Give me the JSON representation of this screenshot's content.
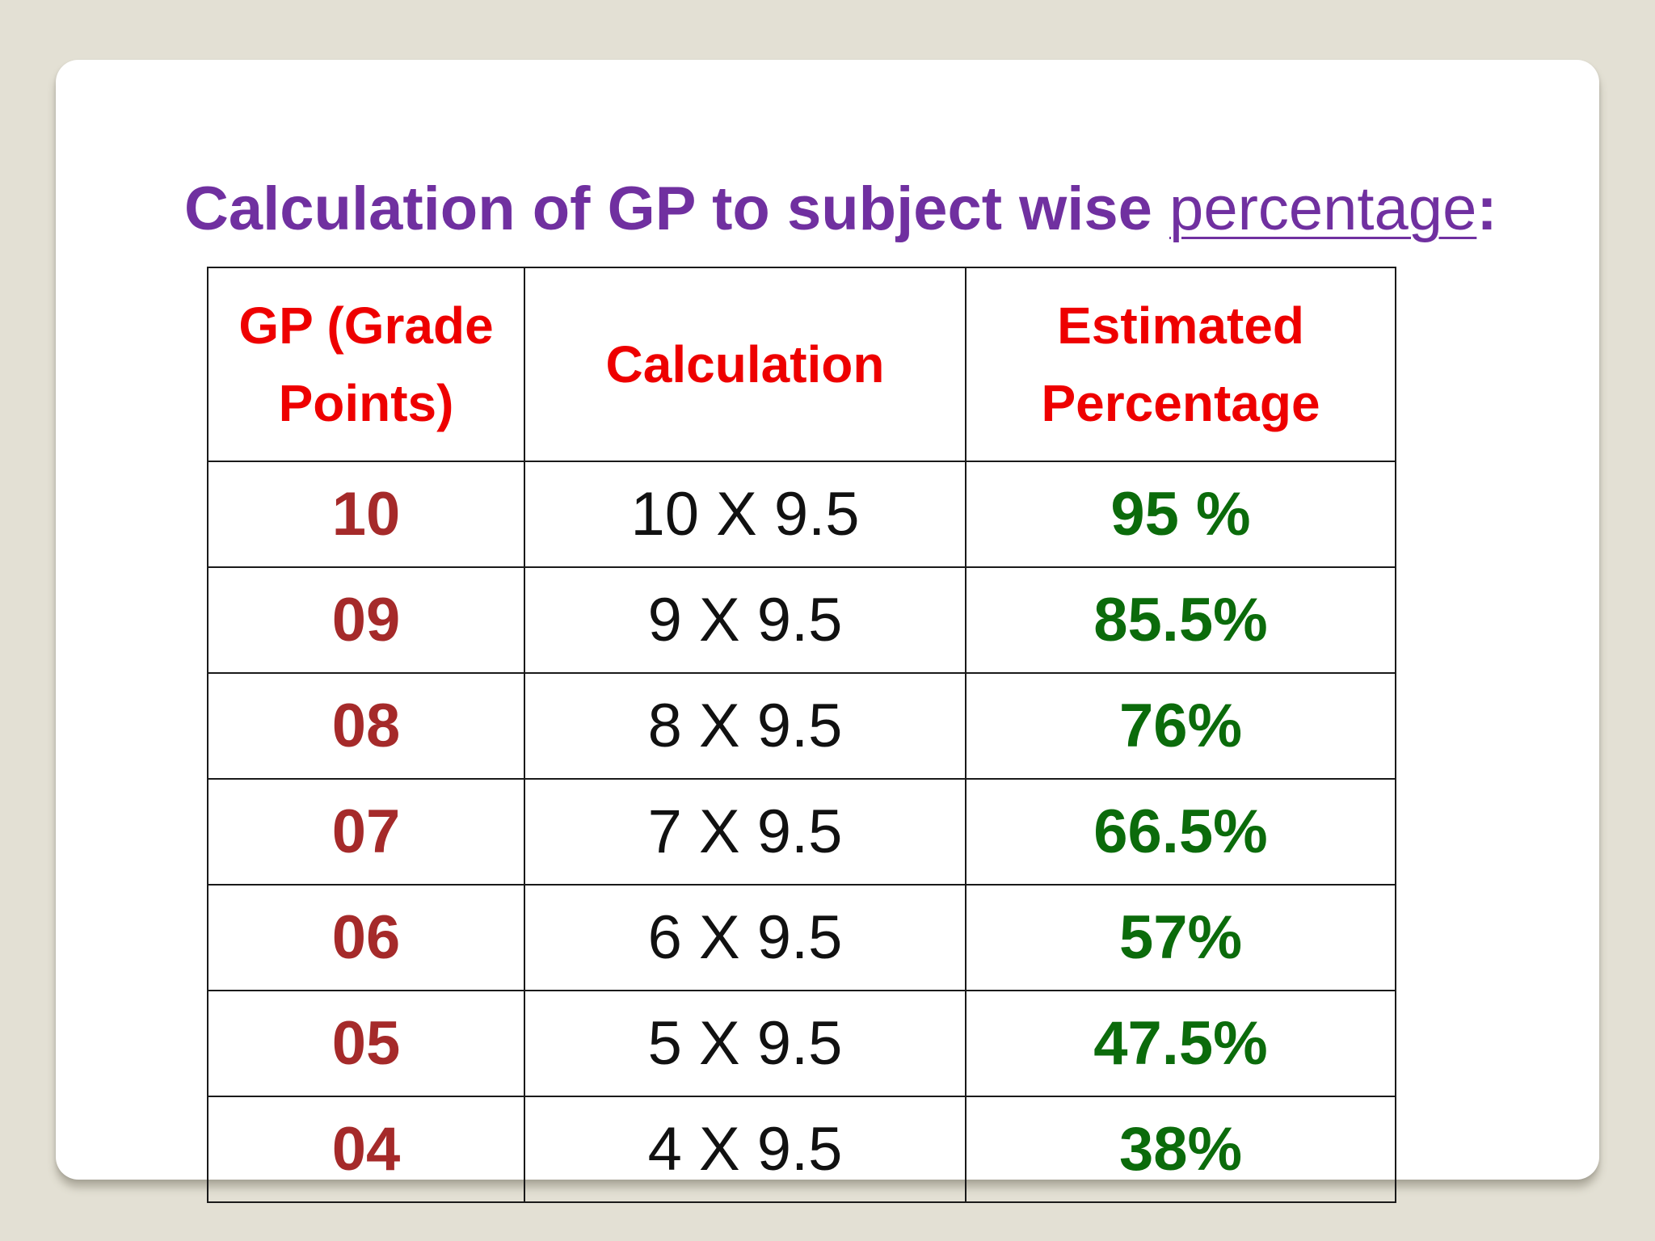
{
  "title": {
    "main": "Calculation of GP to subject wise ",
    "link": "percentage",
    "suffix": ":"
  },
  "table": {
    "headers": [
      {
        "line1": "GP (Grade",
        "line2": "Points)"
      },
      {
        "line1": "Calculation",
        "line2": ""
      },
      {
        "line1": "Estimated",
        "line2": "Percentage"
      }
    ],
    "rows": [
      {
        "gp": "10",
        "calc": "10 X 9.5",
        "pct": "95 %"
      },
      {
        "gp": "09",
        "calc": "9 X 9.5",
        "pct": "85.5%"
      },
      {
        "gp": "08",
        "calc": "8 X 9.5",
        "pct": "76%"
      },
      {
        "gp": "07",
        "calc": "7 X 9.5",
        "pct": "66.5%"
      },
      {
        "gp": "06",
        "calc": "6 X 9.5",
        "pct": "57%"
      },
      {
        "gp": "05",
        "calc": "5 X 9.5",
        "pct": "47.5%"
      },
      {
        "gp": "04",
        "calc": "4 X 9.5",
        "pct": "38%"
      }
    ]
  },
  "colors": {
    "background": "#e3e0d4",
    "title": "#7030a0",
    "header": "#ee0000",
    "gp": "#a52a2a",
    "calc": "#111111",
    "percent": "#0b6b0b",
    "border": "#1a1a1a"
  }
}
